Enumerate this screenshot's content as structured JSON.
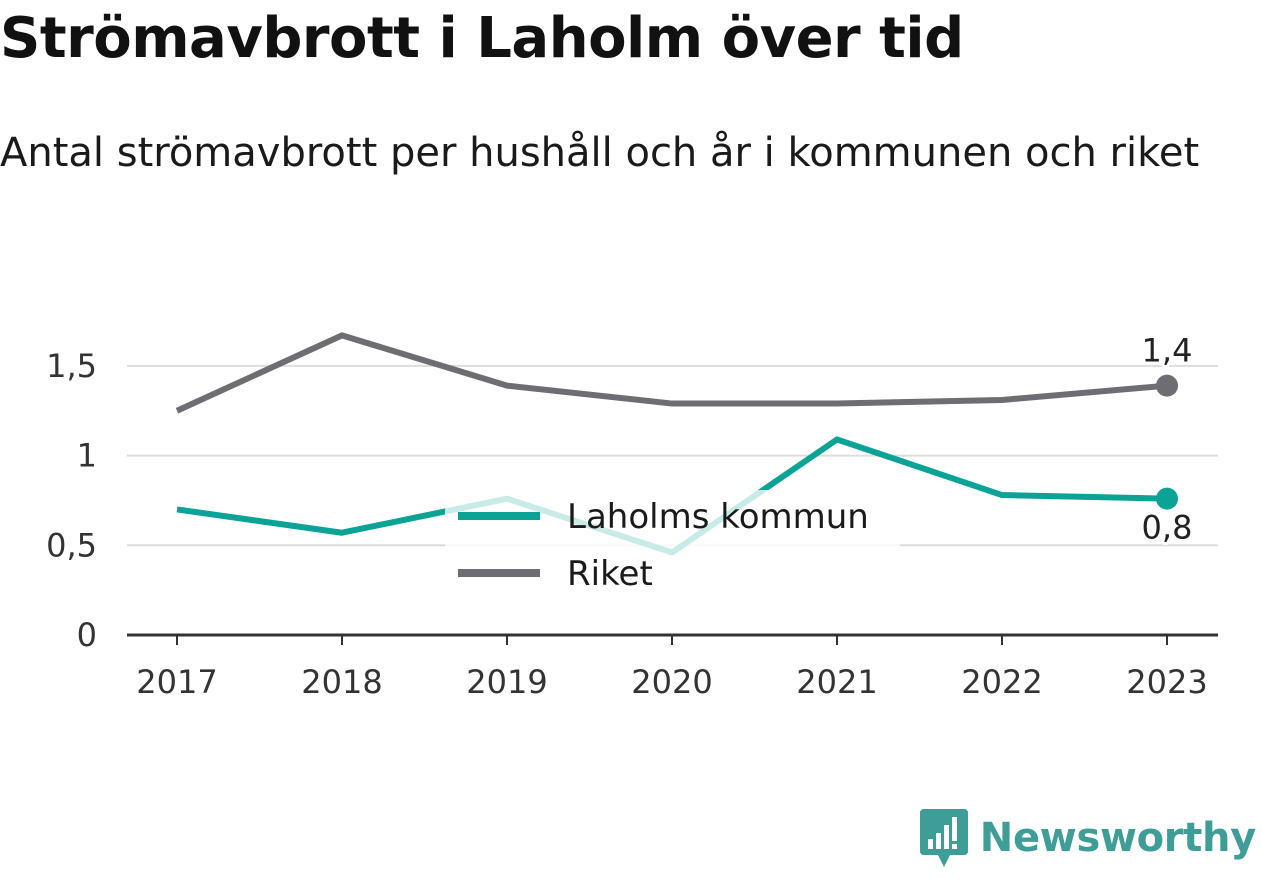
{
  "colors": {
    "laholm": "#0aa396",
    "riket": "#6e6d74",
    "grid": "#dddddd",
    "axis": "#333333",
    "brand": "#3f9d98"
  },
  "branding": {
    "name": "Newsworthy",
    "icon": "newsworthy-logo-icon"
  },
  "chart_data": {
    "type": "line",
    "title": "Strömavbrott i Laholm över tid",
    "subtitle": "Antal strömavbrott per hushåll och år i kommunen och riket",
    "categories": [
      "2017",
      "2018",
      "2019",
      "2020",
      "2021",
      "2022",
      "2023"
    ],
    "ylim": [
      0,
      1.7
    ],
    "yticks": [
      {
        "value": 0,
        "label": "0"
      },
      {
        "value": 0.5,
        "label": "0,5"
      },
      {
        "value": 1,
        "label": "1"
      },
      {
        "value": 1.5,
        "label": "1,5"
      }
    ],
    "grid": true,
    "legend_position": "center",
    "series": [
      {
        "name": "Laholms kommun",
        "values": [
          0.7,
          0.57,
          0.76,
          0.46,
          1.09,
          0.78,
          0.76
        ],
        "end_label": "0,8",
        "end_label_position": "below"
      },
      {
        "name": "Riket",
        "values": [
          1.25,
          1.67,
          1.39,
          1.29,
          1.29,
          1.31,
          1.39
        ],
        "end_label": "1,4",
        "end_label_position": "above"
      }
    ]
  }
}
